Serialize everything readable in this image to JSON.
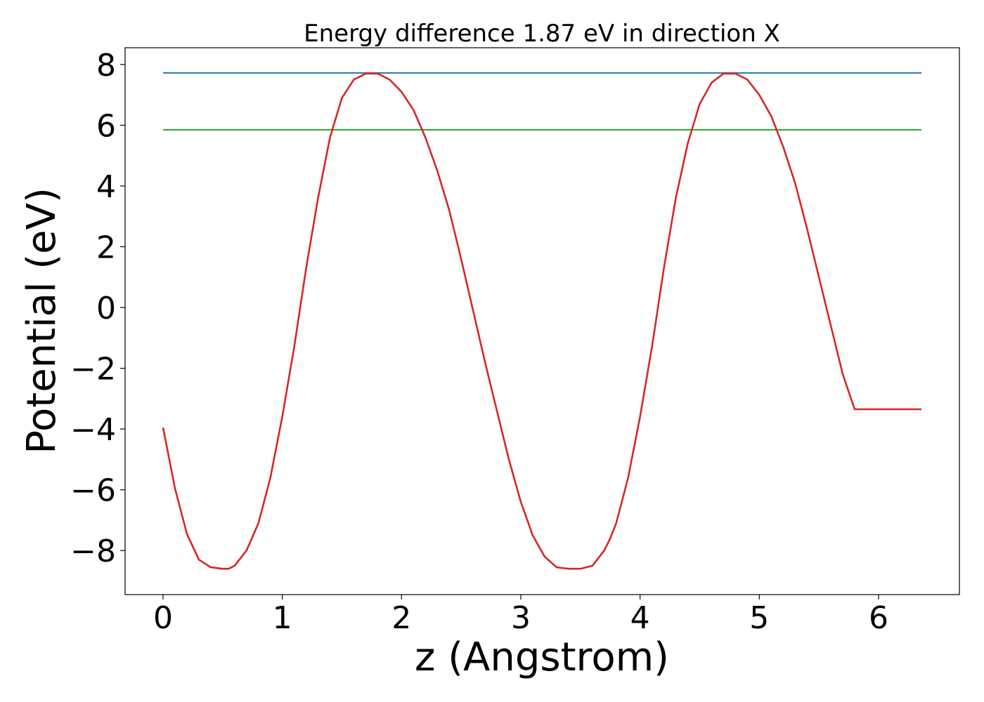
{
  "chart_data": {
    "type": "line",
    "title": "Energy difference 1.87 eV in direction X",
    "xlabel": "z (Angstrom)",
    "ylabel": "Potential (eV)",
    "xlim": [
      -0.318,
      6.678
    ],
    "ylim": [
      -9.45,
      8.55
    ],
    "xticks": [
      0,
      1,
      2,
      3,
      4,
      5,
      6
    ],
    "xtick_labels": [
      "0",
      "1",
      "2",
      "3",
      "4",
      "5",
      "6"
    ],
    "yticks": [
      -8,
      -6,
      -4,
      -2,
      0,
      2,
      4,
      6,
      8
    ],
    "ytick_labels": [
      "−8",
      "−6",
      "−4",
      "−2",
      "0",
      "2",
      "4",
      "6",
      "8"
    ],
    "grid": false,
    "series": [
      {
        "color": "#1f77b4",
        "x": [
          0,
          6.36
        ],
        "y": [
          7.72,
          7.72
        ]
      },
      {
        "color": "#2ca02c",
        "x": [
          0,
          6.36
        ],
        "y": [
          5.85,
          5.85
        ]
      },
      {
        "color": "#d62728",
        "x": [
          0.0,
          0.1,
          0.2,
          0.3,
          0.4,
          0.5,
          0.55,
          0.6,
          0.7,
          0.8,
          0.9,
          1.0,
          1.1,
          1.2,
          1.3,
          1.4,
          1.5,
          1.6,
          1.7,
          1.8,
          1.9,
          2.0,
          2.1,
          2.2,
          2.3,
          2.4,
          2.5,
          2.6,
          2.7,
          2.8,
          2.9,
          3.0,
          3.1,
          3.2,
          3.3,
          3.4,
          3.5,
          3.6,
          3.7,
          3.75,
          3.8,
          3.9,
          4.0,
          4.1,
          4.2,
          4.3,
          4.4,
          4.5,
          4.6,
          4.7,
          4.8,
          4.9,
          5.0,
          5.1,
          5.2,
          5.3,
          5.4,
          5.5,
          5.6,
          5.7,
          5.8,
          5.9,
          6.0,
          6.1,
          6.2,
          6.36
        ],
        "y": [
          -3.95,
          -5.95,
          -7.45,
          -8.3,
          -8.55,
          -8.6,
          -8.6,
          -8.5,
          -8.0,
          -7.1,
          -5.6,
          -3.6,
          -1.3,
          1.3,
          3.6,
          5.6,
          6.9,
          7.5,
          7.7,
          7.7,
          7.5,
          7.1,
          6.5,
          5.6,
          4.5,
          3.2,
          1.6,
          -0.1,
          -1.8,
          -3.4,
          -5.0,
          -6.4,
          -7.5,
          -8.2,
          -8.55,
          -8.6,
          -8.6,
          -8.5,
          -8.0,
          -7.6,
          -7.1,
          -5.6,
          -3.6,
          -1.3,
          1.3,
          3.6,
          5.4,
          6.7,
          7.4,
          7.7,
          7.7,
          7.5,
          7.0,
          6.3,
          5.3,
          4.1,
          2.6,
          1.0,
          -0.6,
          -2.2,
          -3.35,
          -3.35,
          -3.35,
          -3.35,
          -3.35,
          -3.35
        ]
      }
    ]
  }
}
